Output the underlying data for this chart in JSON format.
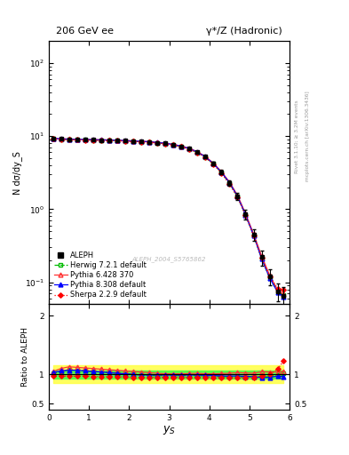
{
  "title_left": "206 GeV ee",
  "title_right": "γ*/Z (Hadronic)",
  "ylabel_main": "N dσ/dy_S",
  "ylabel_ratio": "Ratio to ALEPH",
  "xlabel": "y_S",
  "watermark": "ALEPH_2004_S5765862",
  "right_label_top": "Rivet 3.1.10; ≥ 3.2M events",
  "right_label_bot": "mcplots.cern.ch [arXiv:1306.3436]",
  "ys_values": [
    0.1,
    0.3,
    0.5,
    0.7,
    0.9,
    1.1,
    1.3,
    1.5,
    1.7,
    1.9,
    2.1,
    2.3,
    2.5,
    2.7,
    2.9,
    3.1,
    3.3,
    3.5,
    3.7,
    3.9,
    4.1,
    4.3,
    4.5,
    4.7,
    4.9,
    5.1,
    5.3,
    5.5,
    5.7,
    5.85
  ],
  "aleph_y": [
    9.2,
    9.1,
    9.0,
    8.95,
    8.9,
    8.85,
    8.8,
    8.75,
    8.7,
    8.6,
    8.5,
    8.4,
    8.3,
    8.1,
    7.9,
    7.6,
    7.2,
    6.7,
    6.0,
    5.2,
    4.2,
    3.2,
    2.3,
    1.5,
    0.85,
    0.45,
    0.22,
    0.12,
    0.075,
    0.065
  ],
  "aleph_err": [
    0.15,
    0.12,
    0.11,
    0.1,
    0.1,
    0.09,
    0.09,
    0.09,
    0.09,
    0.09,
    0.09,
    0.09,
    0.1,
    0.1,
    0.1,
    0.1,
    0.12,
    0.15,
    0.18,
    0.2,
    0.22,
    0.22,
    0.2,
    0.18,
    0.12,
    0.08,
    0.05,
    0.03,
    0.02,
    0.02
  ],
  "herwig_y": [
    9.15,
    9.05,
    8.95,
    8.9,
    8.85,
    8.8,
    8.75,
    8.7,
    8.65,
    8.55,
    8.45,
    8.35,
    8.25,
    8.05,
    7.85,
    7.55,
    7.15,
    6.65,
    5.95,
    5.15,
    4.15,
    3.15,
    2.25,
    1.48,
    0.83,
    0.44,
    0.21,
    0.115,
    0.074,
    0.066
  ],
  "pythia6_y": [
    9.3,
    9.2,
    9.1,
    9.05,
    9.0,
    8.95,
    8.9,
    8.85,
    8.8,
    8.7,
    8.6,
    8.5,
    8.4,
    8.2,
    8.0,
    7.7,
    7.3,
    6.8,
    6.1,
    5.25,
    4.25,
    3.25,
    2.35,
    1.55,
    0.87,
    0.46,
    0.23,
    0.125,
    0.078,
    0.068
  ],
  "pythia8_y": [
    9.25,
    9.15,
    9.05,
    9.0,
    8.95,
    8.9,
    8.85,
    8.8,
    8.75,
    8.65,
    8.55,
    8.45,
    8.35,
    8.15,
    7.95,
    7.65,
    7.25,
    6.75,
    6.05,
    5.2,
    4.2,
    3.2,
    2.3,
    1.5,
    0.84,
    0.44,
    0.21,
    0.115,
    0.073,
    0.063
  ],
  "sherpa_y": [
    9.1,
    9.0,
    8.9,
    8.85,
    8.8,
    8.75,
    8.7,
    8.65,
    8.6,
    8.5,
    8.4,
    8.3,
    8.2,
    8.0,
    7.8,
    7.5,
    7.1,
    6.6,
    5.9,
    5.1,
    4.1,
    3.1,
    2.2,
    1.45,
    0.82,
    0.43,
    0.215,
    0.12,
    0.082,
    0.08
  ],
  "herwig_ratio": [
    1.02,
    1.05,
    1.08,
    1.07,
    1.06,
    1.05,
    1.04,
    1.03,
    1.02,
    1.01,
    1.0,
    0.99,
    0.98,
    0.98,
    0.98,
    0.98,
    0.98,
    0.98,
    0.98,
    0.975,
    0.97,
    0.965,
    0.955,
    0.96,
    0.96,
    0.96,
    0.955,
    0.96,
    0.985,
    1.02
  ],
  "pythia6_ratio": [
    1.05,
    1.1,
    1.13,
    1.12,
    1.11,
    1.1,
    1.09,
    1.08,
    1.07,
    1.06,
    1.05,
    1.04,
    1.03,
    1.02,
    1.01,
    1.01,
    1.01,
    1.015,
    1.02,
    1.01,
    1.01,
    1.015,
    1.02,
    1.03,
    1.025,
    1.02,
    1.045,
    1.042,
    1.04,
    1.05
  ],
  "pythia8_ratio": [
    1.03,
    1.06,
    1.07,
    1.07,
    1.06,
    1.05,
    1.04,
    1.03,
    1.02,
    1.01,
    1.0,
    0.99,
    0.99,
    0.99,
    0.99,
    0.99,
    0.99,
    0.99,
    0.99,
    0.985,
    0.98,
    0.975,
    0.97,
    0.975,
    0.965,
    0.96,
    0.945,
    0.95,
    0.97,
    0.965
  ],
  "sherpa_ratio": [
    0.97,
    0.97,
    0.97,
    0.97,
    0.97,
    0.965,
    0.96,
    0.96,
    0.96,
    0.955,
    0.95,
    0.95,
    0.95,
    0.95,
    0.95,
    0.95,
    0.95,
    0.95,
    0.95,
    0.95,
    0.95,
    0.945,
    0.94,
    0.945,
    0.95,
    0.95,
    0.97,
    1.0,
    1.09,
    1.23
  ],
  "band_yellow_lo": 0.85,
  "band_yellow_hi": 1.15,
  "band_green_lo": 0.93,
  "band_green_hi": 1.07,
  "ylim_main": [
    0.05,
    200
  ],
  "ylim_ratio": [
    0.4,
    2.2
  ],
  "xlim": [
    0.0,
    6.0
  ],
  "yticks_ratio_left": [
    0.5,
    1.0,
    2.0
  ],
  "yticks_ratio_right": [
    0.5,
    1.0,
    2.0
  ],
  "colors": {
    "aleph": "#000000",
    "herwig": "#00bb00",
    "pythia6": "#ff3333",
    "pythia8": "#0000ff",
    "sherpa": "#ff0000",
    "band_yellow": "#ffff44",
    "band_green": "#44ff44"
  }
}
